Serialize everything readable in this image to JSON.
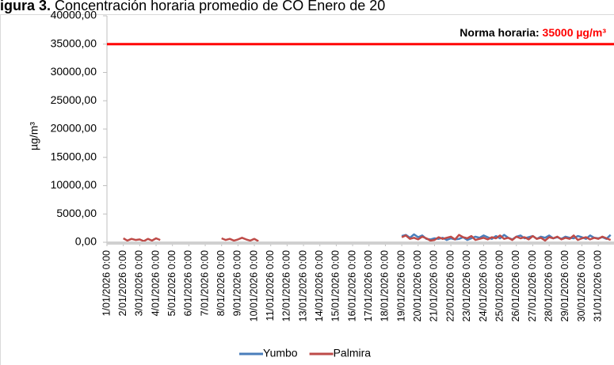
{
  "chart_data": {
    "type": "line",
    "title_prefix": "igura 3.",
    "title": "Concentración horaria promedio de CO Enero de 20",
    "y_label": "µg/m³",
    "annotation_label": "Norma horaria:",
    "annotation_value_label": "35000 µg/m³",
    "threshold": 35000,
    "threshold_color": "#ff0000",
    "categories": [
      "1/01/2026 0:00",
      null,
      null,
      null,
      "2/01/2026 0:00",
      null,
      null,
      null,
      "3/01/2026 0:00",
      null,
      null,
      null,
      "4/01/2026 0:00",
      null,
      null,
      null,
      "5/01/2026 0:00",
      null,
      null,
      null,
      "6/01/2026 0:00",
      null,
      null,
      null,
      "7/01/2026 0:00",
      null,
      null,
      null,
      "8/01/2026 0:00",
      null,
      null,
      null,
      "9/01/2026 0:00",
      null,
      null,
      null,
      "10/01/2026 0:00",
      null,
      null,
      null,
      "11/01/2026 0:00",
      null,
      null,
      null,
      "12/01/2026 0:00",
      null,
      null,
      null,
      "13/01/2026 0:00",
      null,
      null,
      null,
      "14/01/2026 0:00",
      null,
      null,
      null,
      "15/01/2026 0:00",
      null,
      null,
      null,
      "16/01/2026 0:00",
      null,
      null,
      null,
      "17/01/2026 0:00",
      null,
      null,
      null,
      "18/01/2026 0:00",
      null,
      null,
      null,
      "19/01/2026 0:00",
      null,
      null,
      null,
      "20/01/2026 0:00",
      null,
      null,
      null,
      "21/01/2026 0:00",
      null,
      null,
      null,
      "22/01/2026 0:00",
      null,
      null,
      null,
      "23/01/2026 0:00",
      null,
      null,
      null,
      "24/01/2026 0:00",
      null,
      null,
      null,
      "25/01/2026 0:00",
      null,
      null,
      null,
      "26/01/2026 0:00",
      null,
      null,
      null,
      "27/01/2026 0:00",
      null,
      null,
      null,
      "28/01/2026 0:00",
      null,
      null,
      null,
      "29/01/2026 0:00",
      null,
      null,
      null,
      "30/01/2026 0:00",
      null,
      null,
      null,
      "31/01/2026 0:00",
      null,
      null,
      null
    ],
    "series": [
      {
        "name": "Yumbo",
        "color": "#4a7ebb",
        "values": [
          null,
          null,
          null,
          null,
          null,
          null,
          null,
          null,
          null,
          null,
          null,
          null,
          null,
          null,
          null,
          null,
          null,
          null,
          null,
          null,
          null,
          null,
          null,
          null,
          null,
          null,
          null,
          null,
          null,
          null,
          null,
          null,
          null,
          null,
          null,
          null,
          null,
          null,
          null,
          null,
          null,
          null,
          null,
          null,
          null,
          null,
          null,
          null,
          null,
          null,
          null,
          null,
          null,
          null,
          null,
          null,
          null,
          null,
          null,
          null,
          null,
          null,
          null,
          null,
          null,
          null,
          null,
          null,
          null,
          null,
          null,
          null,
          1100,
          1300,
          800,
          1400,
          900,
          1200,
          600,
          500,
          700,
          600,
          800,
          400,
          700,
          500,
          600,
          900,
          400,
          700,
          1000,
          800,
          1200,
          900,
          600,
          1100,
          700,
          1300,
          800,
          500,
          1000,
          1200,
          700,
          900,
          1100,
          600,
          1000,
          800,
          1200,
          700,
          900,
          600,
          1000,
          800,
          700,
          1100,
          900,
          600,
          1200,
          800,
          700,
          900,
          600,
          1300
        ]
      },
      {
        "name": "Palmira",
        "color": "#be4b48",
        "values": [
          null,
          null,
          null,
          null,
          700,
          300,
          600,
          400,
          500,
          200,
          600,
          300,
          700,
          400,
          null,
          null,
          null,
          null,
          null,
          null,
          null,
          null,
          null,
          null,
          null,
          null,
          null,
          null,
          700,
          400,
          600,
          300,
          500,
          800,
          500,
          300,
          600,
          200,
          null,
          null,
          null,
          null,
          null,
          null,
          null,
          null,
          null,
          null,
          null,
          null,
          null,
          null,
          null,
          null,
          null,
          null,
          null,
          null,
          null,
          null,
          null,
          null,
          null,
          null,
          null,
          null,
          null,
          null,
          null,
          null,
          null,
          null,
          900,
          1200,
          600,
          800,
          500,
          1000,
          700,
          300,
          400,
          900,
          600,
          800,
          1000,
          500,
          1300,
          900,
          700,
          1100,
          400,
          600,
          800,
          500,
          900,
          700,
          1200,
          600,
          800,
          400,
          1000,
          700,
          900,
          500,
          1100,
          600,
          800,
          300,
          900,
          700,
          1000,
          500,
          800,
          600,
          1200,
          400,
          700,
          900,
          500,
          800,
          600,
          1000,
          700,
          400
        ]
      }
    ],
    "ylim": [
      0,
      40000
    ],
    "yticks": [
      {
        "value": 0,
        "label": "0,00"
      },
      {
        "value": 5000,
        "label": "5000,00"
      },
      {
        "value": 10000,
        "label": "10000,00"
      },
      {
        "value": 15000,
        "label": "15000,00"
      },
      {
        "value": 20000,
        "label": "20000,00"
      },
      {
        "value": 25000,
        "label": "25000,00"
      },
      {
        "value": 30000,
        "label": "30000,00"
      },
      {
        "value": 35000,
        "label": "35000,00"
      },
      {
        "value": 40000,
        "label": "40000,00"
      }
    ],
    "legend": "bottom"
  }
}
